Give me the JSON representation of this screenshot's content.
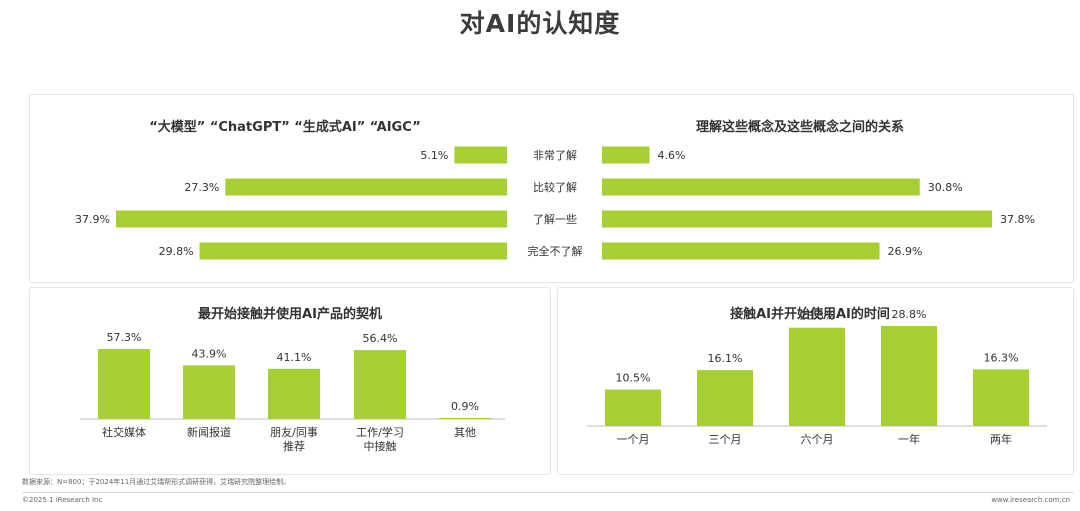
{
  "page": {
    "title": "对AI的认知度"
  },
  "colors": {
    "bar": "#a6cf31",
    "text": "#333333",
    "axis": "#bfbfbf"
  },
  "chart_data": [
    {
      "type": "bar",
      "orientation": "horizontal",
      "title": "“大模型” “ChatGPT” “生成式AI” “AIGC”",
      "categories": [
        "非常了解",
        "比较了解",
        "了解一些",
        "完全不了解"
      ],
      "values": [
        5.1,
        27.3,
        37.9,
        29.8
      ],
      "value_labels": [
        "5.1%",
        "27.3%",
        "37.9%",
        "29.8%"
      ],
      "direction": "right-to-left",
      "unit": "%"
    },
    {
      "type": "bar",
      "orientation": "horizontal",
      "title": "理解这些概念及这些概念之间的关系",
      "categories": [
        "非常了解",
        "比较了解",
        "了解一些",
        "完全不了解"
      ],
      "values": [
        4.6,
        30.8,
        37.8,
        26.9
      ],
      "value_labels": [
        "4.6%",
        "30.8%",
        "37.8%",
        "26.9%"
      ],
      "direction": "left-to-right",
      "unit": "%"
    },
    {
      "type": "bar",
      "title": "最开始接触并使用AI产品的契机",
      "categories": [
        "社交媒体",
        "新闻报道",
        "朋友/同事\n推荐",
        "工作/学习\n中接触",
        "其他"
      ],
      "values": [
        57.3,
        43.9,
        41.1,
        56.4,
        0.9
      ],
      "value_labels": [
        "57.3%",
        "43.9%",
        "41.1%",
        "56.4%",
        "0.9%"
      ],
      "unit": "%"
    },
    {
      "type": "bar",
      "title": "接触AI并开始使用AI的时间",
      "categories": [
        "一个月",
        "三个月",
        "六个月",
        "一年",
        "两年"
      ],
      "values": [
        10.5,
        16.1,
        28.3,
        28.8,
        16.3
      ],
      "value_labels": [
        "10.5%",
        "16.1%",
        "28.3%",
        "28.8%",
        "16.3%"
      ],
      "unit": "%"
    }
  ],
  "footnote": "数据来源：N=800；于2024年11月通过艾瑞帮形式调研获得，艾瑞研究院整理绘制。",
  "footer": {
    "copyright": "©2025.1 iResearch Inc",
    "website": "www.iresearch.com.cn"
  }
}
